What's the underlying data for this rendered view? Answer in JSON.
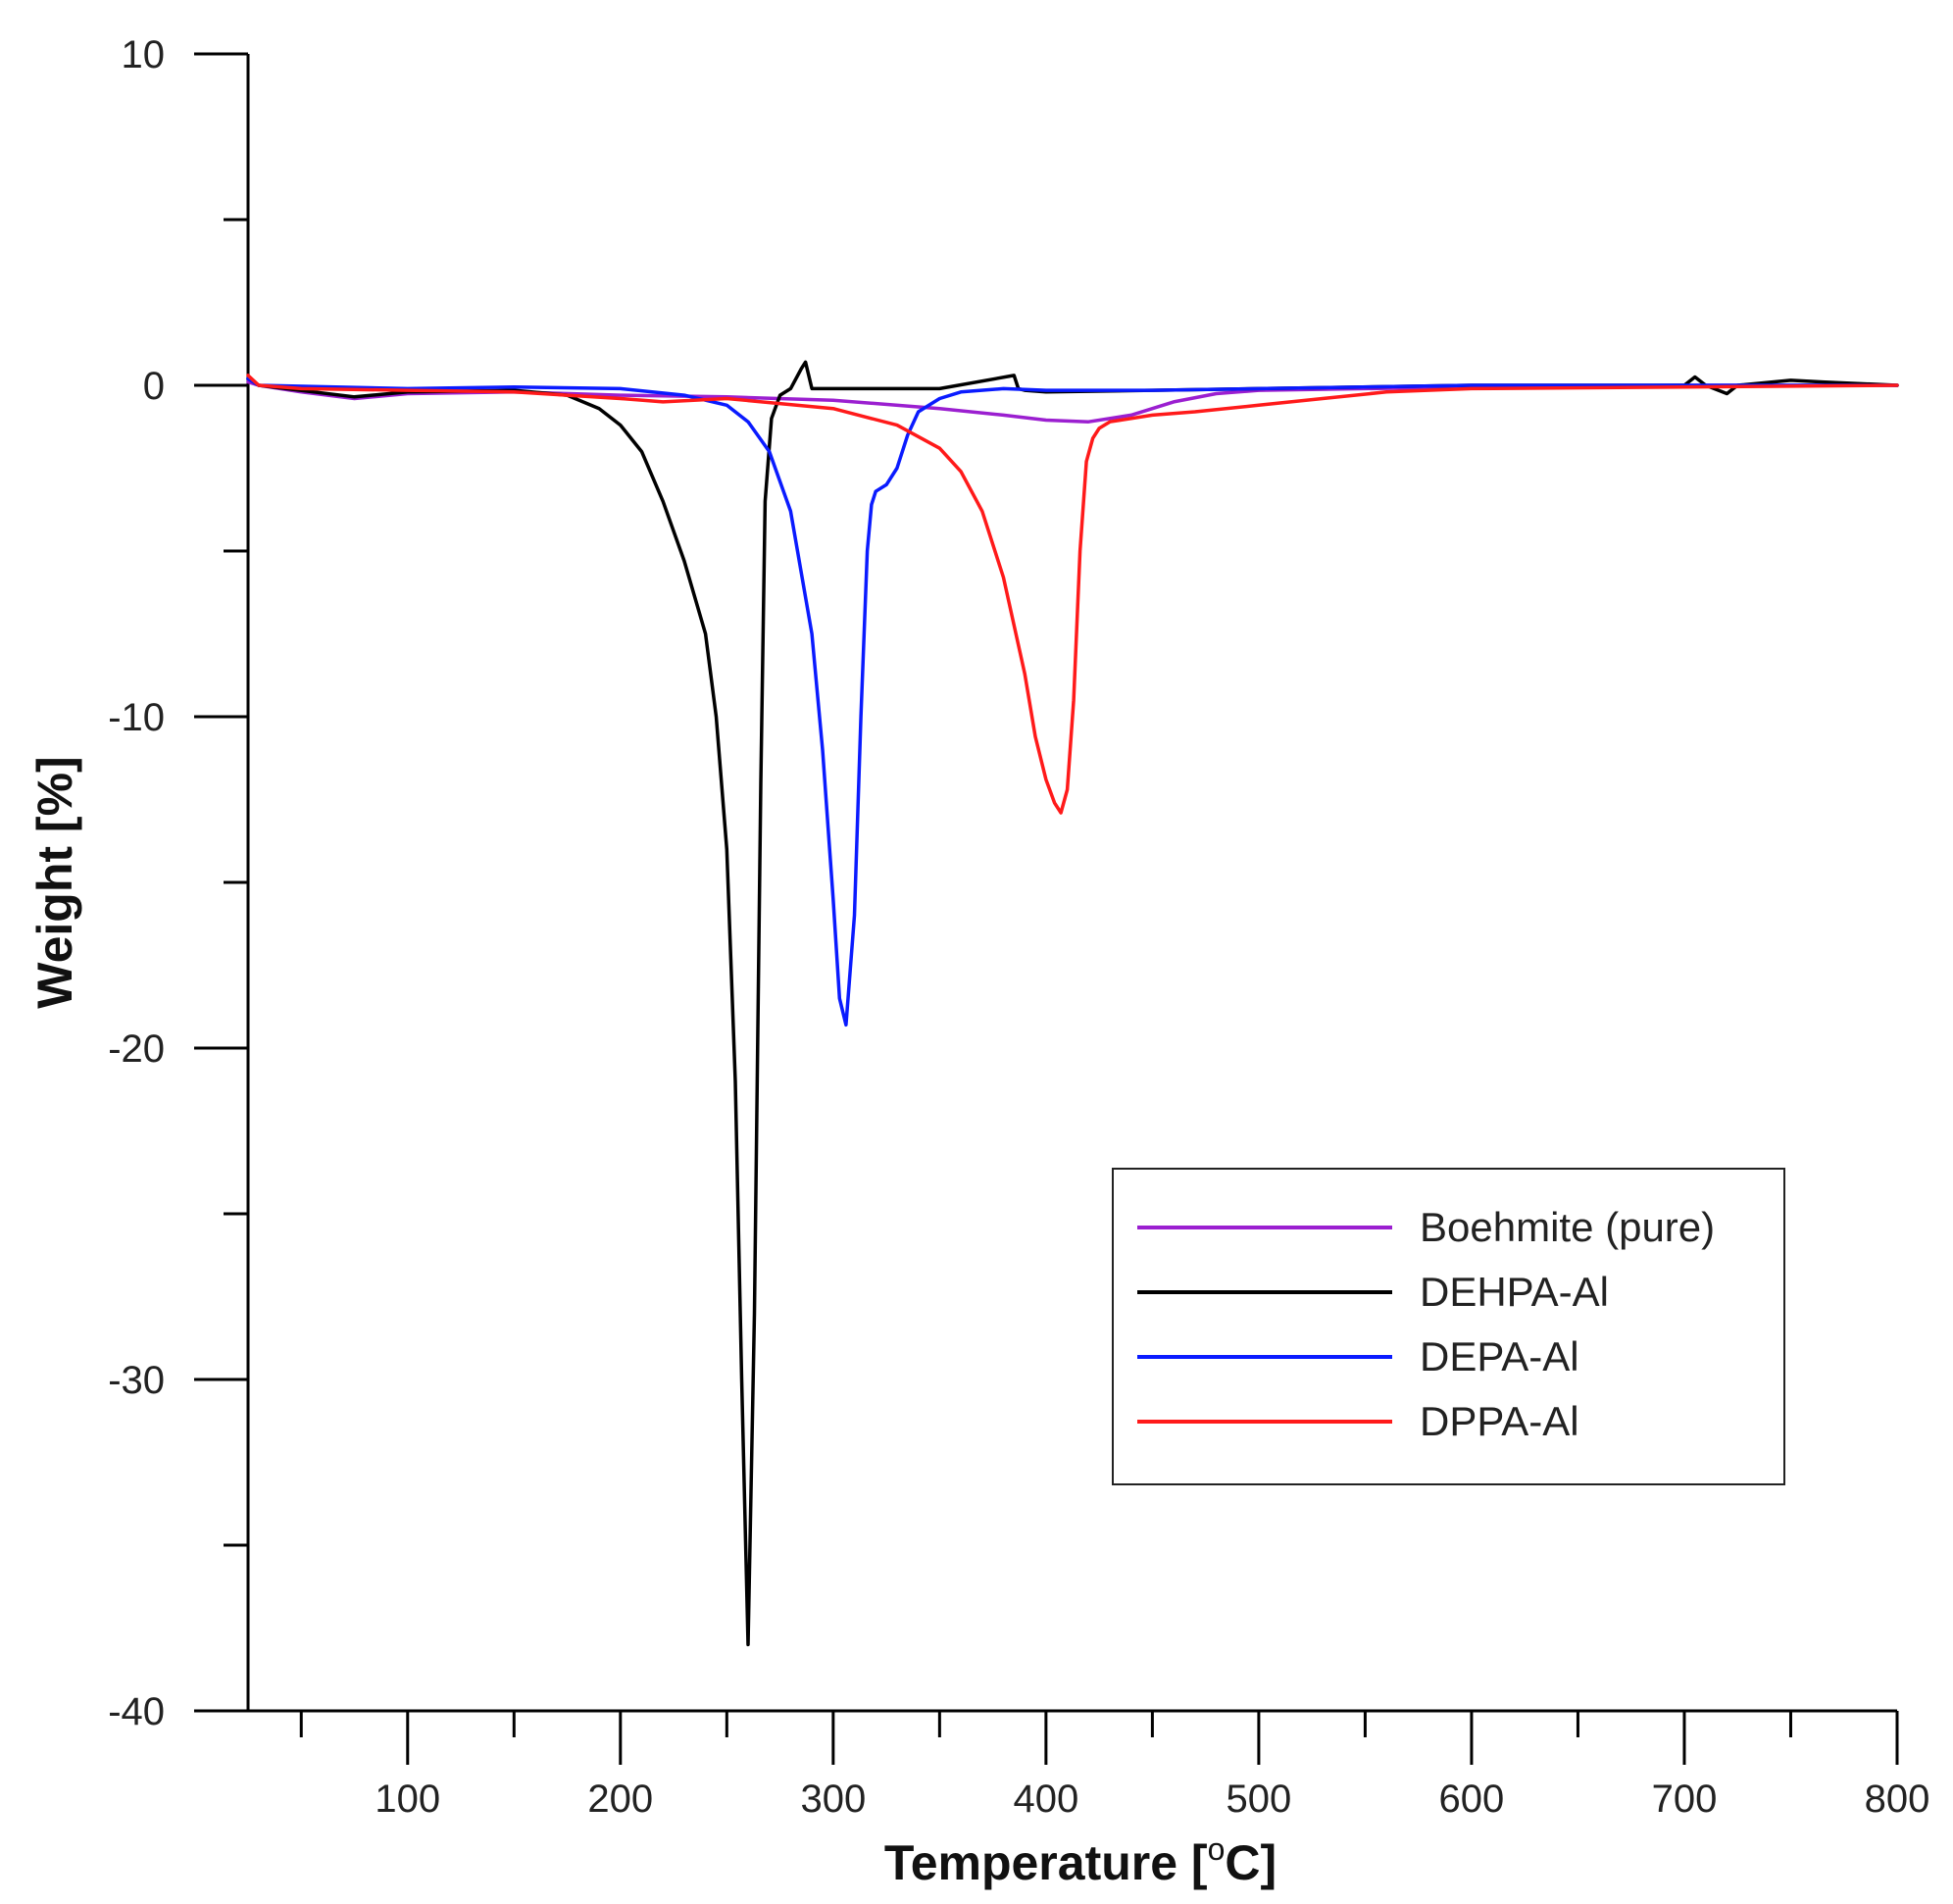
{
  "chart_data": {
    "type": "line",
    "title": "",
    "xlabel": "Temperature [",
    "xlabel_sup": "o",
    "xlabel_tail": "C]",
    "ylabel": "Weight [%]",
    "xlim": [
      25,
      800
    ],
    "ylim": [
      -40,
      10
    ],
    "x_ticks": [
      100,
      200,
      300,
      400,
      500,
      600,
      700,
      800
    ],
    "x_minor_ticks": [
      50,
      150,
      250,
      350,
      450,
      550,
      650,
      750
    ],
    "y_ticks": [
      10,
      0,
      -10,
      -20,
      -30,
      -40
    ],
    "y_minor_ticks": [
      5,
      -5,
      -15,
      -25,
      -35
    ],
    "legend_position": "lower-right",
    "series": [
      {
        "name": "Boehmite (pure)",
        "color": "#9b1fd0",
        "x": [
          25,
          30,
          50,
          75,
          100,
          150,
          200,
          250,
          300,
          350,
          380,
          400,
          420,
          440,
          460,
          480,
          500,
          550,
          600,
          700,
          800
        ],
        "y": [
          0.1,
          0,
          -0.2,
          -0.4,
          -0.25,
          -0.2,
          -0.3,
          -0.35,
          -0.45,
          -0.7,
          -0.9,
          -1.05,
          -1.1,
          -0.9,
          -0.5,
          -0.25,
          -0.15,
          -0.1,
          -0.05,
          0,
          0
        ]
      },
      {
        "name": "DEHPA-Al",
        "color": "#000000",
        "x": [
          25,
          30,
          75,
          100,
          150,
          175,
          190,
          200,
          210,
          220,
          230,
          240,
          245,
          250,
          254,
          257,
          260,
          263,
          266,
          268,
          271,
          275,
          280,
          285,
          287,
          290,
          300,
          350,
          385,
          387,
          390,
          400,
          500,
          600,
          700,
          705,
          710,
          720,
          725,
          750,
          765,
          800
        ],
        "y": [
          0.2,
          0,
          -0.35,
          -0.2,
          -0.15,
          -0.3,
          -0.7,
          -1.2,
          -2.0,
          -3.5,
          -5.3,
          -7.5,
          -10,
          -14,
          -21,
          -30,
          -38,
          -28,
          -12,
          -3.5,
          -1.0,
          -0.3,
          -0.1,
          0.5,
          0.7,
          -0.1,
          -0.1,
          -0.1,
          0.3,
          -0.1,
          -0.15,
          -0.2,
          -0.1,
          0,
          0,
          0.25,
          0,
          -0.25,
          0,
          0.15,
          0.1,
          0
        ]
      },
      {
        "name": "DEPA-Al",
        "color": "#0a1bff",
        "x": [
          25,
          30,
          100,
          150,
          200,
          230,
          250,
          260,
          270,
          280,
          290,
          295,
          300,
          303,
          306,
          310,
          313,
          316,
          318,
          320,
          325,
          330,
          335,
          340,
          350,
          360,
          380,
          400,
          450,
          500,
          600,
          700,
          800
        ],
        "y": [
          0.2,
          0,
          -0.1,
          -0.05,
          -0.1,
          -0.3,
          -0.6,
          -1.1,
          -2.0,
          -3.8,
          -7.5,
          -11,
          -15.5,
          -18.5,
          -19.3,
          -16,
          -10,
          -5,
          -3.6,
          -3.2,
          -3.0,
          -2.5,
          -1.5,
          -0.8,
          -0.4,
          -0.2,
          -0.1,
          -0.15,
          -0.15,
          -0.1,
          0,
          0,
          0
        ]
      },
      {
        "name": "DPPA-Al",
        "color": "#ff1a1a",
        "x": [
          25,
          30,
          50,
          100,
          150,
          200,
          220,
          250,
          300,
          330,
          350,
          360,
          370,
          380,
          390,
          395,
          400,
          404,
          407,
          410,
          413,
          416,
          419,
          422,
          425,
          430,
          450,
          470,
          500,
          530,
          560,
          600,
          700,
          800
        ],
        "y": [
          0.3,
          0,
          -0.1,
          -0.15,
          -0.2,
          -0.4,
          -0.5,
          -0.4,
          -0.7,
          -1.2,
          -1.9,
          -2.6,
          -3.8,
          -5.8,
          -8.7,
          -10.6,
          -11.9,
          -12.6,
          -12.9,
          -12.2,
          -9.5,
          -5.0,
          -2.3,
          -1.6,
          -1.3,
          -1.1,
          -0.9,
          -0.8,
          -0.6,
          -0.4,
          -0.2,
          -0.1,
          -0.05,
          0
        ]
      }
    ]
  }
}
